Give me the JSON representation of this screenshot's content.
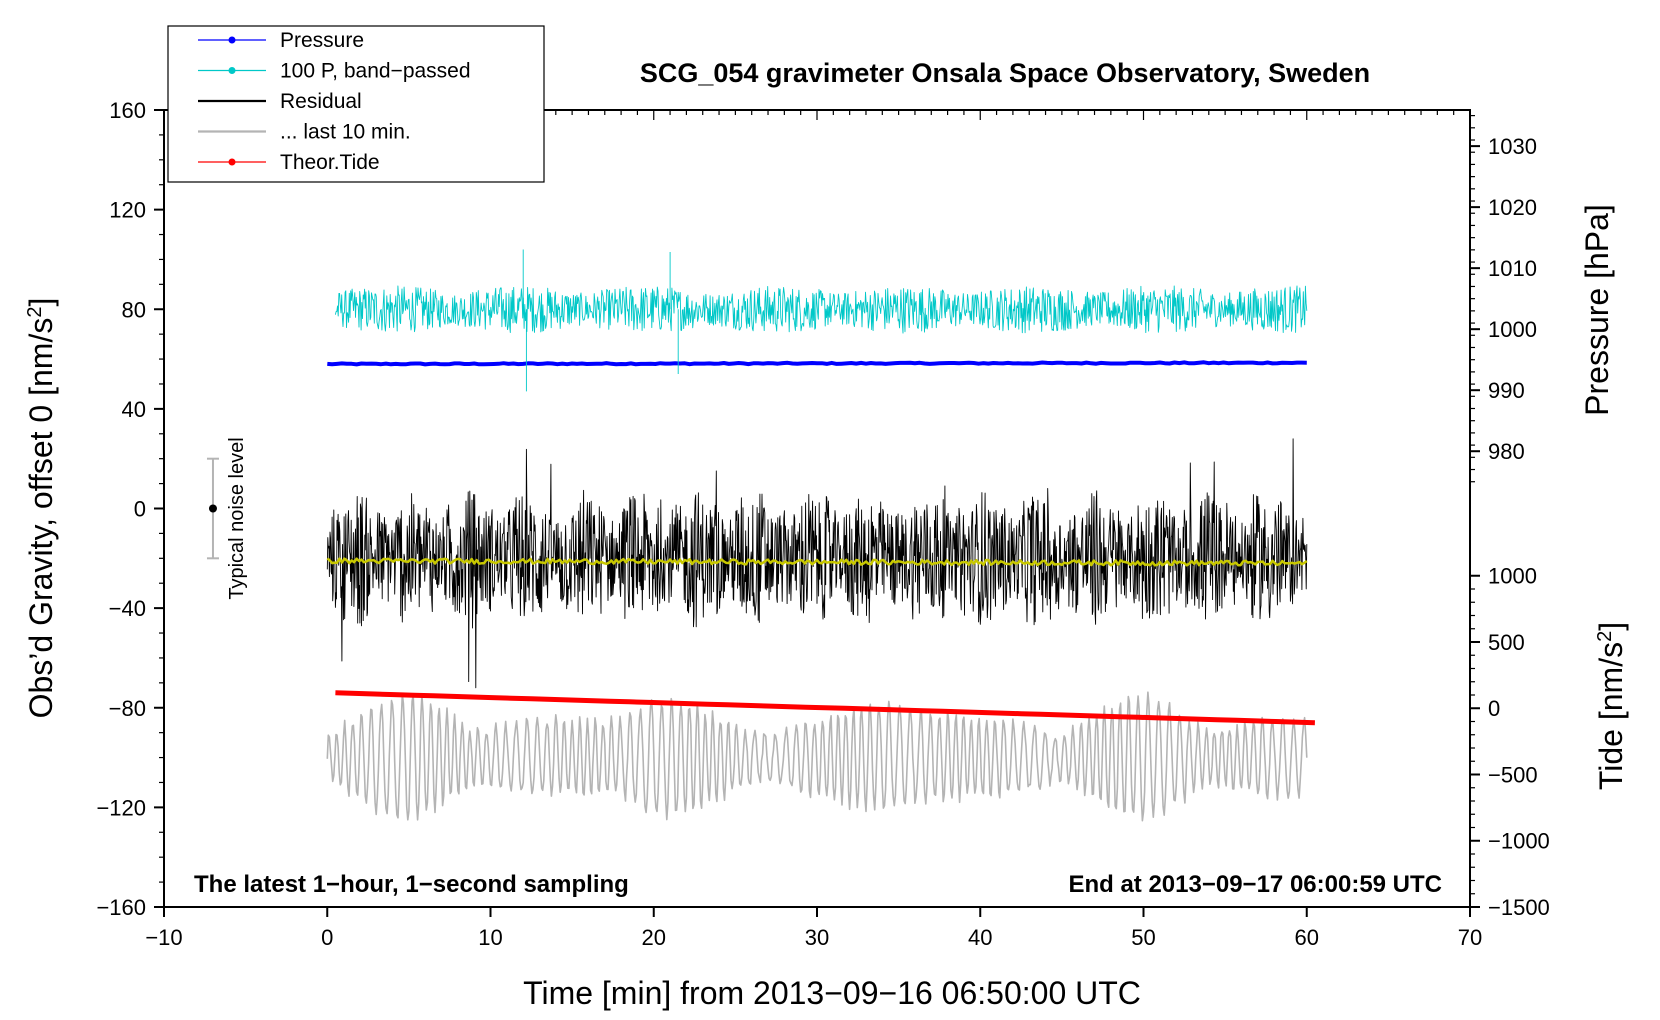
{
  "chart_data": {
    "type": "line",
    "title": "SCG_054 gravimeter Onsala Space Observatory, Sweden",
    "xlabel": "Time [min] from 2013−09−16 06:50:00 UTC",
    "ylabel_left": "Obs’d Gravity, offset 0 [nm/s",
    "ylabel_left_sup": "2",
    "ylabel_left_close": "]",
    "ylabel_pressure": "Pressure [hPa]",
    "ylabel_tide": "Tide [nm/s",
    "ylabel_tide_sup": "2",
    "ylabel_tide_close": "]",
    "xlim": [
      -10,
      70
    ],
    "ylim": [
      -160,
      160
    ],
    "x_ticks": [
      -10,
      0,
      10,
      20,
      30,
      40,
      50,
      60,
      70
    ],
    "x_tick_labels": [
      "−10",
      "0",
      "10",
      "20",
      "30",
      "40",
      "50",
      "60",
      "70"
    ],
    "y_ticks": [
      -160,
      -120,
      -80,
      -40,
      0,
      40,
      80,
      120,
      160
    ],
    "y_tick_labels": [
      "−160",
      "−120",
      "−80",
      "−40",
      "0",
      "40",
      "80",
      "120",
      "160"
    ],
    "pressure_axis": {
      "ticks": [
        980,
        990,
        1000,
        1010,
        1020,
        1030
      ],
      "tick_labels": [
        "980",
        "990",
        "1000",
        "1010",
        "1020",
        "1030"
      ],
      "grav_at_980": 23,
      "grav_per_hpa": 2.45
    },
    "tide_axis": {
      "ticks": [
        -1500,
        -1000,
        -500,
        0,
        500,
        1000
      ],
      "tick_labels": [
        "−1500",
        "−1000",
        "−500",
        "0",
        "500",
        "1000"
      ],
      "grav_at_minus1500": -160,
      "grav_per_unit": 0.0532
    },
    "legend": {
      "placement": "top-left",
      "entries": [
        {
          "label": "Pressure",
          "color": "#0000ff",
          "marker": true
        },
        {
          "label": "100 P, band−passed",
          "color": "#00c8c8",
          "marker": true
        },
        {
          "label": "Residual",
          "color": "#000000",
          "marker": false
        },
        {
          "label": "... last 10 min.",
          "color": "#b4b4b4",
          "marker": false
        },
        {
          "label": "Theor.Tide",
          "color": "#ff0000",
          "marker": true
        }
      ]
    },
    "annotations": {
      "noise_label": "Typical noise level",
      "noise_bar": {
        "x": -7,
        "center": 0,
        "half_range": 20
      },
      "bottom_left": "The latest 1−hour, 1−second sampling",
      "bottom_right": "End at 2013−09−17 06:00:59 UTC"
    },
    "series": [
      {
        "name": "Pressure",
        "color": "#0000ff",
        "x_range": [
          0,
          60
        ],
        "y_start": 58,
        "y_end": 58.5,
        "noise_amplitude": 0.5
      },
      {
        "name": "100 P, band−passed",
        "color": "#00c8c8",
        "x_range": [
          0.5,
          60
        ],
        "y_center": 80,
        "noise_amplitude": 8,
        "spikes": [
          [
            12,
            104
          ],
          [
            12.2,
            47
          ],
          [
            21,
            103
          ],
          [
            21.5,
            54
          ]
        ]
      },
      {
        "name": "Residual",
        "color": "#000000",
        "x_range": [
          0,
          60
        ],
        "y_center": -20,
        "noise_amplitude": 22,
        "y_max": 28,
        "y_min": -72
      },
      {
        "name": "Residual mean",
        "color": "#c8c800",
        "x_range": [
          0,
          60
        ],
        "y_start": -21,
        "y_end": -22,
        "noise_amplitude": 1
      },
      {
        "name": "... last 10 min.",
        "color": "#b4b4b4",
        "x_range": [
          0,
          60
        ],
        "y_center": -100,
        "noise_amplitude": 12,
        "y_max": -64,
        "y_min": -136
      },
      {
        "name": "Theor.Tide",
        "color": "#ff0000",
        "x_range": [
          0.5,
          60.5
        ],
        "y_start": -74,
        "y_end": -86
      }
    ]
  }
}
